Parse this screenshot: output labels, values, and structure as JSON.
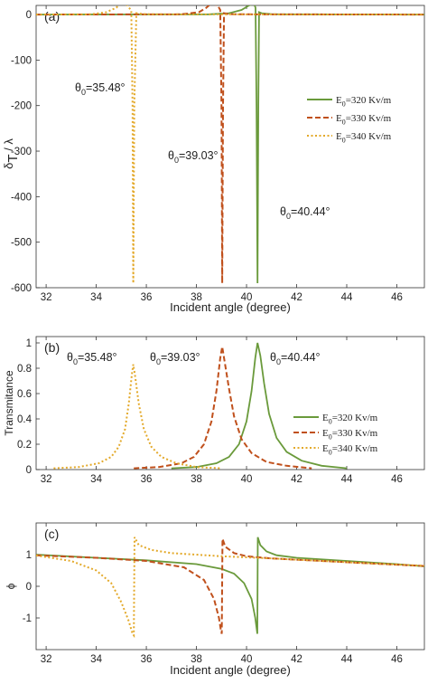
{
  "colors": {
    "s320": "#6a9a3b",
    "s330": "#c0501c",
    "s340": "#e3a92a",
    "axis": "#333333"
  },
  "chart_data": [
    {
      "id": "a",
      "type": "line",
      "panel_label": "(a)",
      "xlabel": "Incident angle (degree)",
      "ylabel_main": "δ",
      "ylabel_sub": "T",
      "ylabel_tail": "/ λ",
      "xlim": [
        31.6,
        47.1
      ],
      "ylim": [
        -600,
        20
      ],
      "xticks": [
        32,
        34,
        36,
        38,
        40,
        42,
        44,
        46
      ],
      "yticks": [
        0,
        -100,
        -200,
        -300,
        -400,
        -500,
        -600
      ],
      "legend": {
        "position": "right-middle",
        "entries": [
          "E0=320 Kv/m",
          "E0=330 Kv/m",
          "E0=340 Kv/m"
        ]
      },
      "annotations": [
        "θ0=35.48°",
        "θ0=39.03°",
        "θ0=40.44°"
      ],
      "series": [
        {
          "name": "E0=320 Kv/m",
          "style": "solid",
          "x": [
            31.6,
            38.5,
            39.3,
            39.8,
            40.1,
            40.3,
            40.36,
            40.4,
            40.44,
            40.47,
            40.5,
            40.6,
            41.0,
            41.6,
            47.1
          ],
          "y": [
            0,
            0.5,
            3,
            10,
            20,
            23,
            15,
            -200,
            -590,
            -200,
            5,
            3,
            1,
            0.5,
            0
          ]
        },
        {
          "name": "E0=330 Kv/m",
          "style": "dashed",
          "x": [
            31.6,
            37.4,
            38.1,
            38.4,
            38.6,
            38.85,
            38.95,
            39.0,
            39.03,
            39.06,
            39.1,
            39.3,
            39.8,
            47.1
          ],
          "y": [
            0,
            0.5,
            5,
            15,
            25,
            20,
            10,
            -200,
            -590,
            -200,
            3,
            1,
            0.5,
            0
          ]
        },
        {
          "name": "E0=340 Kv/m",
          "style": "dotted",
          "x": [
            31.6,
            33.8,
            34.4,
            34.8,
            35.0,
            35.25,
            35.4,
            35.45,
            35.48,
            35.52,
            35.6,
            35.9,
            36.4,
            47.1
          ],
          "y": [
            0,
            0.5,
            5,
            15,
            25,
            20,
            8,
            -200,
            -590,
            -200,
            3,
            1,
            0.5,
            0
          ]
        }
      ]
    },
    {
      "id": "b",
      "type": "line",
      "panel_label": "(b)",
      "xlabel": "",
      "ylabel": "Transmitance",
      "xlim": [
        31.6,
        47.1
      ],
      "ylim": [
        0,
        1.05
      ],
      "xticks": [
        32,
        34,
        36,
        38,
        40,
        42,
        44,
        46
      ],
      "yticks": [
        0,
        0.2,
        0.4,
        0.6,
        0.8,
        1
      ],
      "legend": {
        "position": "right-middle",
        "entries": [
          "E0=320 Kv/m",
          "E0=330 Kv/m",
          "E0=340 Kv/m"
        ]
      },
      "annotations": [
        "θ0=35.48°",
        "θ0=39.03°",
        "θ0=40.44°"
      ],
      "series": [
        {
          "name": "E0=320 Kv/m",
          "style": "solid",
          "x": [
            37.0,
            38.0,
            38.8,
            39.3,
            39.7,
            40.0,
            40.2,
            40.35,
            40.44,
            40.55,
            40.7,
            40.9,
            41.2,
            41.6,
            42.2,
            43.0,
            44.0
          ],
          "y": [
            0.01,
            0.02,
            0.05,
            0.1,
            0.2,
            0.38,
            0.62,
            0.88,
            1.0,
            0.9,
            0.68,
            0.44,
            0.25,
            0.14,
            0.07,
            0.03,
            0.01
          ]
        },
        {
          "name": "E0=330 Kv/m",
          "style": "dashed",
          "x": [
            35.5,
            36.5,
            37.4,
            37.9,
            38.3,
            38.6,
            38.8,
            38.95,
            39.03,
            39.12,
            39.3,
            39.5,
            39.8,
            40.2,
            40.8,
            41.6,
            42.6
          ],
          "y": [
            0.01,
            0.02,
            0.05,
            0.1,
            0.2,
            0.38,
            0.62,
            0.88,
            0.97,
            0.86,
            0.64,
            0.42,
            0.24,
            0.13,
            0.06,
            0.03,
            0.01
          ]
        },
        {
          "name": "E0=340 Kv/m",
          "style": "dotted",
          "x": [
            32.3,
            33.3,
            34.1,
            34.6,
            34.9,
            35.15,
            35.3,
            35.42,
            35.48,
            35.55,
            35.7,
            35.9,
            36.2,
            36.6,
            37.2,
            38.0,
            39.0
          ],
          "y": [
            0.01,
            0.02,
            0.05,
            0.1,
            0.18,
            0.32,
            0.52,
            0.75,
            0.83,
            0.74,
            0.52,
            0.32,
            0.18,
            0.1,
            0.05,
            0.02,
            0.01
          ]
        }
      ]
    },
    {
      "id": "c",
      "type": "line",
      "panel_label": "(c)",
      "xlabel": "Incident angle (degree)",
      "ylabel": "ϕ",
      "xlim": [
        31.6,
        47.1
      ],
      "ylim": [
        -2,
        2
      ],
      "xticks": [
        32,
        34,
        36,
        38,
        40,
        42,
        44,
        46
      ],
      "yticks": [
        -1,
        0,
        1
      ],
      "series": [
        {
          "name": "E0=320 Kv/m",
          "style": "solid",
          "x": [
            31.6,
            34,
            36,
            38,
            39.0,
            39.5,
            39.9,
            40.2,
            40.35,
            40.43,
            40.45,
            40.55,
            40.8,
            41.2,
            42,
            44,
            46,
            47.1
          ],
          "y": [
            1.0,
            0.9,
            0.82,
            0.7,
            0.55,
            0.4,
            0.1,
            -0.4,
            -1.0,
            -1.5,
            1.55,
            1.3,
            1.1,
            0.98,
            0.9,
            0.8,
            0.7,
            0.63
          ]
        },
        {
          "name": "E0=330 Kv/m",
          "style": "dashed",
          "x": [
            31.6,
            34,
            36,
            37.5,
            38.3,
            38.7,
            38.9,
            38.98,
            39.01,
            39.04,
            39.15,
            39.5,
            40.0,
            41.0,
            43,
            45,
            47.1
          ],
          "y": [
            0.98,
            0.9,
            0.8,
            0.6,
            0.2,
            -0.4,
            -1.0,
            -1.4,
            -1.5,
            1.5,
            1.25,
            1.05,
            0.95,
            0.88,
            0.8,
            0.72,
            0.64
          ]
        },
        {
          "name": "E0=340 Kv/m",
          "style": "dotted",
          "x": [
            31.6,
            33.0,
            34.0,
            34.6,
            35.0,
            35.3,
            35.45,
            35.5,
            35.53,
            35.7,
            36.2,
            37,
            39,
            41,
            43,
            45,
            47.1
          ],
          "y": [
            0.97,
            0.8,
            0.5,
            0.1,
            -0.5,
            -1.1,
            -1.5,
            -1.55,
            1.55,
            1.3,
            1.15,
            1.05,
            0.95,
            0.88,
            0.8,
            0.72,
            0.65
          ]
        }
      ]
    }
  ]
}
